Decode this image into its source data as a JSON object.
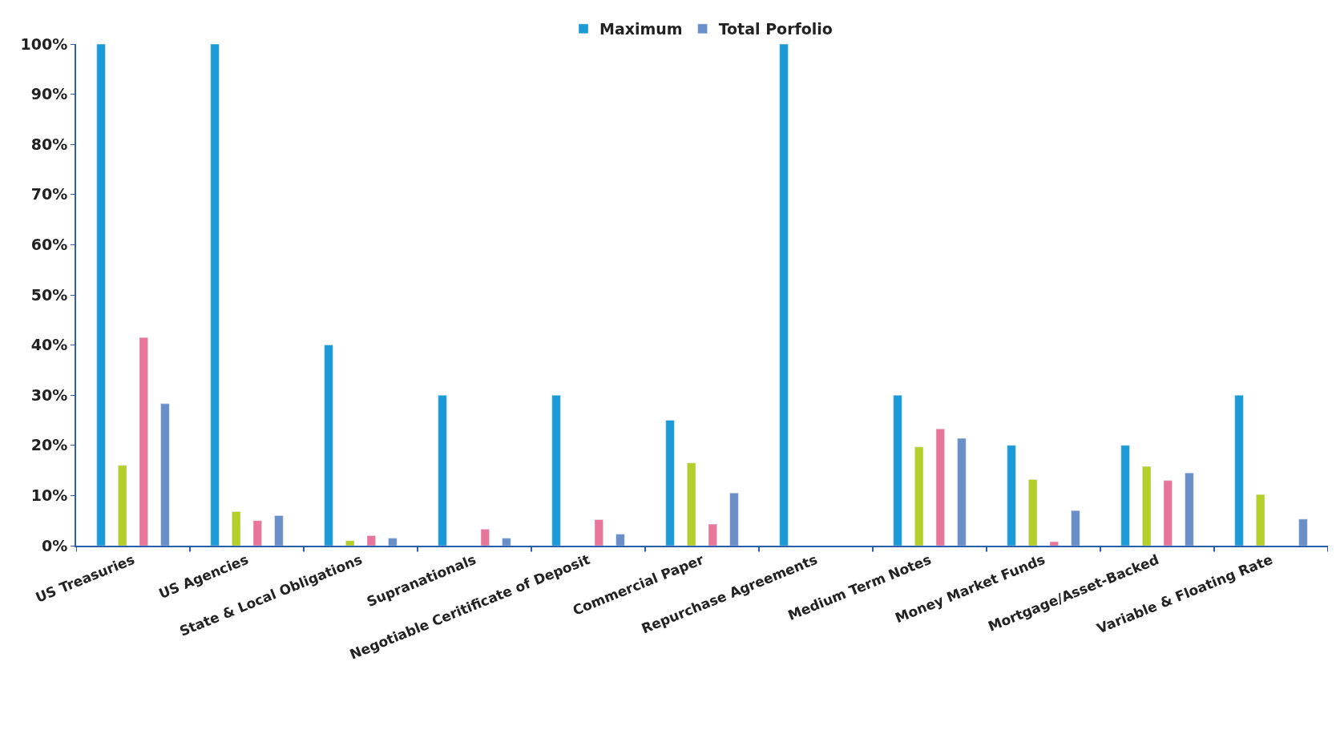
{
  "chart_data": {
    "type": "bar",
    "categories": [
      "US Treasuries",
      "US Agencies",
      "State & Local Obligations",
      "Supranationals",
      "Negotiable Ceritificate of Deposit",
      "Commercial Paper",
      "Repurchase Agreements",
      "Medium Term Notes",
      "Money Market Funds",
      "Mortgage/Asset-Backed",
      "Variable & Floating Rate"
    ],
    "series": [
      {
        "name": "Maximum",
        "color": "#1a9ad6",
        "values": [
          100,
          100,
          40,
          30,
          30,
          25,
          100,
          30,
          20,
          20,
          30
        ]
      },
      {
        "color": "#b5cf2a",
        "values": [
          16,
          6.8,
          1,
          null,
          null,
          16.5,
          null,
          19.7,
          13.2,
          15.8,
          10.2
        ]
      },
      {
        "color": "#e8769a",
        "values": [
          41.5,
          5,
          2,
          3.3,
          5.2,
          4.3,
          null,
          23.3,
          0.8,
          13,
          null
        ]
      },
      {
        "name": "Total Porfolio",
        "color": "#6a8ec8",
        "values": [
          28.3,
          6,
          1.5,
          1.5,
          2.3,
          10.5,
          null,
          21.4,
          7,
          14.5,
          5.3
        ]
      }
    ],
    "ylim": [
      0,
      100
    ],
    "yticks": [
      {
        "value": 0,
        "label": "0%"
      },
      {
        "value": 10,
        "label": "10%"
      },
      {
        "value": 20,
        "label": "20%"
      },
      {
        "value": 30,
        "label": "30%"
      },
      {
        "value": 40,
        "label": "40%"
      },
      {
        "value": 50,
        "label": "50%"
      },
      {
        "value": 60,
        "label": "60%"
      },
      {
        "value": 70,
        "label": "70%"
      },
      {
        "value": 80,
        "label": "80%"
      },
      {
        "value": 90,
        "label": "90%"
      },
      {
        "value": 100,
        "label": "100%"
      }
    ],
    "legend": "top"
  }
}
